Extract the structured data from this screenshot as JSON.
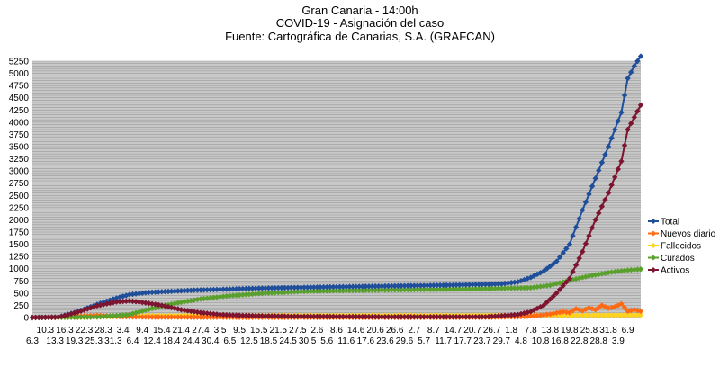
{
  "chart_data": {
    "type": "line",
    "title": "Gran Canaria - 14:00h",
    "subtitle": "COVID-19 - Asignación del caso",
    "source": "Fuente: Cartográfica de Canarias, S.A. (GRAFCAN)",
    "ylim": [
      0,
      5250
    ],
    "ystep": 250,
    "grid": true,
    "legend_position": "right",
    "x_range_days": [
      0,
      188
    ],
    "x_tick_labels": [
      {
        "day": 0,
        "label": "6.3"
      },
      {
        "day": 4,
        "label": "10.3"
      },
      {
        "day": 7,
        "label": "13.3"
      },
      {
        "day": 10,
        "label": "16.3"
      },
      {
        "day": 13,
        "label": "19.3"
      },
      {
        "day": 16,
        "label": "22.3"
      },
      {
        "day": 19,
        "label": "25.3"
      },
      {
        "day": 22,
        "label": "28.3"
      },
      {
        "day": 25,
        "label": "31.3"
      },
      {
        "day": 28,
        "label": "3.4"
      },
      {
        "day": 31,
        "label": "6.4"
      },
      {
        "day": 34,
        "label": "9.4"
      },
      {
        "day": 37,
        "label": "12.4"
      },
      {
        "day": 40,
        "label": "15.4"
      },
      {
        "day": 43,
        "label": "18.4"
      },
      {
        "day": 46,
        "label": "21.4"
      },
      {
        "day": 49,
        "label": "24.4"
      },
      {
        "day": 52,
        "label": "27.4"
      },
      {
        "day": 55,
        "label": "30.4"
      },
      {
        "day": 58,
        "label": "3.5"
      },
      {
        "day": 61,
        "label": "6.5"
      },
      {
        "day": 64,
        "label": "9.5"
      },
      {
        "day": 67,
        "label": "12.5"
      },
      {
        "day": 70,
        "label": "15.5"
      },
      {
        "day": 73,
        "label": "18.5"
      },
      {
        "day": 76,
        "label": "21.5"
      },
      {
        "day": 79,
        "label": "24.5"
      },
      {
        "day": 82,
        "label": "27.5"
      },
      {
        "day": 85,
        "label": "30.5"
      },
      {
        "day": 88,
        "label": "2.6"
      },
      {
        "day": 91,
        "label": "5.6"
      },
      {
        "day": 94,
        "label": "8.6"
      },
      {
        "day": 97,
        "label": "11.6"
      },
      {
        "day": 100,
        "label": "14.6"
      },
      {
        "day": 103,
        "label": "17.6"
      },
      {
        "day": 106,
        "label": "20.6"
      },
      {
        "day": 109,
        "label": "23.6"
      },
      {
        "day": 112,
        "label": "26.6"
      },
      {
        "day": 115,
        "label": "29.6"
      },
      {
        "day": 118,
        "label": "2.7"
      },
      {
        "day": 121,
        "label": "5.7"
      },
      {
        "day": 124,
        "label": "8.7"
      },
      {
        "day": 127,
        "label": "11.7"
      },
      {
        "day": 130,
        "label": "14.7"
      },
      {
        "day": 133,
        "label": "17.7"
      },
      {
        "day": 136,
        "label": "20.7"
      },
      {
        "day": 139,
        "label": "23.7"
      },
      {
        "day": 142,
        "label": "26.7"
      },
      {
        "day": 145,
        "label": "29.7"
      },
      {
        "day": 148,
        "label": "1.8"
      },
      {
        "day": 151,
        "label": "4.8"
      },
      {
        "day": 154,
        "label": "7.8"
      },
      {
        "day": 157,
        "label": "10.8"
      },
      {
        "day": 160,
        "label": "13.8"
      },
      {
        "day": 163,
        "label": "16.8"
      },
      {
        "day": 166,
        "label": "19.8"
      },
      {
        "day": 169,
        "label": "22.8"
      },
      {
        "day": 172,
        "label": "25.8"
      },
      {
        "day": 175,
        "label": "28.8"
      },
      {
        "day": 178,
        "label": "31.8"
      },
      {
        "day": 181,
        "label": "3.9"
      },
      {
        "day": 184,
        "label": "6.9"
      }
    ],
    "series": [
      {
        "name": "Total",
        "color": "#1f4e9a",
        "points": [
          [
            0,
            0
          ],
          [
            8,
            10
          ],
          [
            14,
            120
          ],
          [
            20,
            270
          ],
          [
            26,
            400
          ],
          [
            30,
            470
          ],
          [
            36,
            515
          ],
          [
            50,
            560
          ],
          [
            70,
            600
          ],
          [
            90,
            625
          ],
          [
            110,
            645
          ],
          [
            130,
            665
          ],
          [
            145,
            690
          ],
          [
            150,
            730
          ],
          [
            154,
            820
          ],
          [
            158,
            950
          ],
          [
            162,
            1150
          ],
          [
            166,
            1500
          ],
          [
            170,
            2200
          ],
          [
            174,
            2850
          ],
          [
            178,
            3500
          ],
          [
            182,
            4200
          ],
          [
            184,
            4900
          ],
          [
            186,
            5150
          ],
          [
            188,
            5350
          ]
        ]
      },
      {
        "name": "Nuevos diario",
        "color": "#ff6a13",
        "points": [
          [
            0,
            0
          ],
          [
            10,
            15
          ],
          [
            16,
            30
          ],
          [
            20,
            45
          ],
          [
            26,
            20
          ],
          [
            34,
            10
          ],
          [
            60,
            5
          ],
          [
            100,
            3
          ],
          [
            140,
            5
          ],
          [
            150,
            15
          ],
          [
            156,
            40
          ],
          [
            160,
            70
          ],
          [
            164,
            120
          ],
          [
            166,
            100
          ],
          [
            168,
            180
          ],
          [
            170,
            140
          ],
          [
            172,
            200
          ],
          [
            174,
            160
          ],
          [
            176,
            250
          ],
          [
            178,
            190
          ],
          [
            180,
            220
          ],
          [
            182,
            280
          ],
          [
            184,
            130
          ],
          [
            186,
            160
          ],
          [
            188,
            130
          ]
        ]
      },
      {
        "name": "Fallecidos",
        "color": "#ffd21e",
        "points": [
          [
            0,
            0
          ],
          [
            16,
            5
          ],
          [
            26,
            20
          ],
          [
            34,
            35
          ],
          [
            50,
            40
          ],
          [
            80,
            42
          ],
          [
            120,
            43
          ],
          [
            150,
            44
          ],
          [
            165,
            45
          ],
          [
            180,
            48
          ],
          [
            188,
            50
          ]
        ]
      },
      {
        "name": "Curados",
        "color": "#5aa02c",
        "points": [
          [
            0,
            0
          ],
          [
            20,
            10
          ],
          [
            30,
            60
          ],
          [
            36,
            170
          ],
          [
            44,
            290
          ],
          [
            52,
            380
          ],
          [
            60,
            440
          ],
          [
            72,
            500
          ],
          [
            86,
            540
          ],
          [
            110,
            565
          ],
          [
            140,
            590
          ],
          [
            154,
            610
          ],
          [
            160,
            660
          ],
          [
            166,
            760
          ],
          [
            172,
            850
          ],
          [
            178,
            920
          ],
          [
            184,
            970
          ],
          [
            188,
            990
          ]
        ]
      },
      {
        "name": "Activos",
        "color": "#7d1531",
        "points": [
          [
            0,
            0
          ],
          [
            8,
            5
          ],
          [
            14,
            110
          ],
          [
            20,
            240
          ],
          [
            26,
            320
          ],
          [
            30,
            340
          ],
          [
            34,
            310
          ],
          [
            40,
            250
          ],
          [
            46,
            160
          ],
          [
            52,
            100
          ],
          [
            58,
            60
          ],
          [
            66,
            40
          ],
          [
            80,
            25
          ],
          [
            110,
            15
          ],
          [
            140,
            15
          ],
          [
            150,
            60
          ],
          [
            154,
            120
          ],
          [
            158,
            250
          ],
          [
            162,
            500
          ],
          [
            166,
            800
          ],
          [
            170,
            1350
          ],
          [
            174,
            2000
          ],
          [
            178,
            2550
          ],
          [
            182,
            3200
          ],
          [
            184,
            3850
          ],
          [
            186,
            4100
          ],
          [
            188,
            4350
          ]
        ]
      }
    ]
  }
}
